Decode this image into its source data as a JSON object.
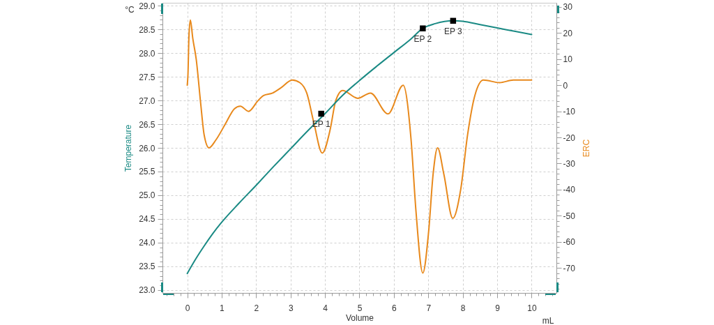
{
  "chart_data": {
    "type": "line",
    "xlabel": "Volume",
    "ylabel": "Temperature",
    "y2label": "ERC",
    "annotations": [
      "°C",
      "mL"
    ],
    "xlim": [
      -0.72,
      10.72
    ],
    "xticks": [
      {
        "value": -0.6,
        "label": null
      },
      {
        "value": -0.4,
        "label": null
      },
      {
        "value": -0.2,
        "label": null
      },
      0,
      {
        "value": 0.2,
        "label": null
      },
      {
        "value": 0.4,
        "label": null
      },
      {
        "value": 0.6,
        "label": null
      },
      {
        "value": 0.8,
        "label": null
      },
      1,
      {
        "value": 1.2,
        "label": null
      },
      {
        "value": 1.4,
        "label": null
      },
      {
        "value": 1.6,
        "label": null
      },
      {
        "value": 1.8,
        "label": null
      },
      2,
      {
        "value": 2.2,
        "label": null
      },
      {
        "value": 2.4,
        "label": null
      },
      {
        "value": 2.6,
        "label": null
      },
      {
        "value": 2.8,
        "label": null
      },
      3,
      {
        "value": 3.2,
        "label": null
      },
      {
        "value": 3.4,
        "label": null
      },
      {
        "value": 3.6,
        "label": null
      },
      {
        "value": 3.8,
        "label": null
      },
      4,
      {
        "value": 4.2,
        "label": null
      },
      {
        "value": 4.4,
        "label": null
      },
      {
        "value": 4.6,
        "label": null
      },
      {
        "value": 4.8,
        "label": null
      },
      5,
      {
        "value": 5.2,
        "label": null
      },
      {
        "value": 5.4,
        "label": null
      },
      {
        "value": 5.6,
        "label": null
      },
      {
        "value": 5.8,
        "label": null
      },
      6,
      {
        "value": 6.2,
        "label": null
      },
      {
        "value": 6.4,
        "label": null
      },
      {
        "value": 6.6,
        "label": null
      },
      {
        "value": 6.8,
        "label": null
      },
      7,
      {
        "value": 7.2,
        "label": null
      },
      {
        "value": 7.4,
        "label": null
      },
      {
        "value": 7.6,
        "label": null
      },
      {
        "value": 7.8,
        "label": null
      },
      8,
      {
        "value": 8.2,
        "label": null
      },
      {
        "value": 8.4,
        "label": null
      },
      {
        "value": 8.6,
        "label": null
      },
      {
        "value": 8.8,
        "label": null
      },
      9,
      {
        "value": 9.2,
        "label": null
      },
      {
        "value": 9.4,
        "label": null
      },
      {
        "value": 9.6,
        "label": null
      },
      {
        "value": 9.8,
        "label": null
      },
      10,
      {
        "value": 10.2,
        "label": null
      },
      {
        "value": 10.4,
        "label": null
      },
      {
        "value": 10.6,
        "label": null
      }
    ],
    "ylim": [
      22.94,
      29.06
    ],
    "yticks": [
      {
        "value": 23,
        "label": "23.0"
      },
      {
        "value": 23.1,
        "label": null
      },
      {
        "value": 23.2,
        "label": null
      },
      {
        "value": 23.3,
        "label": null
      },
      {
        "value": 23.4,
        "label": null
      },
      23.5,
      {
        "value": 23.6,
        "label": null
      },
      {
        "value": 23.7,
        "label": null
      },
      {
        "value": 23.8,
        "label": null
      },
      {
        "value": 23.9,
        "label": null
      },
      {
        "value": 24,
        "label": "24.0"
      },
      {
        "value": 24.1,
        "label": null
      },
      {
        "value": 24.2,
        "label": null
      },
      {
        "value": 24.3,
        "label": null
      },
      {
        "value": 24.4,
        "label": null
      },
      24.5,
      {
        "value": 24.6,
        "label": null
      },
      {
        "value": 24.7,
        "label": null
      },
      {
        "value": 24.8,
        "label": null
      },
      {
        "value": 24.9,
        "label": null
      },
      {
        "value": 25,
        "label": "25.0"
      },
      {
        "value": 25.1,
        "label": null
      },
      {
        "value": 25.2,
        "label": null
      },
      {
        "value": 25.3,
        "label": null
      },
      {
        "value": 25.4,
        "label": null
      },
      25.5,
      {
        "value": 25.6,
        "label": null
      },
      {
        "value": 25.7,
        "label": null
      },
      {
        "value": 25.8,
        "label": null
      },
      {
        "value": 25.9,
        "label": null
      },
      {
        "value": 26,
        "label": "26.0"
      },
      {
        "value": 26.1,
        "label": null
      },
      {
        "value": 26.2,
        "label": null
      },
      {
        "value": 26.3,
        "label": null
      },
      {
        "value": 26.4,
        "label": null
      },
      26.5,
      {
        "value": 26.6,
        "label": null
      },
      {
        "value": 26.7,
        "label": null
      },
      {
        "value": 26.8,
        "label": null
      },
      {
        "value": 26.9,
        "label": null
      },
      {
        "value": 27,
        "label": "27.0"
      },
      {
        "value": 27.1,
        "label": null
      },
      {
        "value": 27.2,
        "label": null
      },
      {
        "value": 27.3,
        "label": null
      },
      {
        "value": 27.4,
        "label": null
      },
      27.5,
      {
        "value": 27.6,
        "label": null
      },
      {
        "value": 27.7,
        "label": null
      },
      {
        "value": 27.8,
        "label": null
      },
      {
        "value": 27.9,
        "label": null
      },
      {
        "value": 28,
        "label": "28.0"
      },
      {
        "value": 28.1,
        "label": null
      },
      {
        "value": 28.2,
        "label": null
      },
      {
        "value": 28.3,
        "label": null
      },
      {
        "value": 28.4,
        "label": null
      },
      28.5,
      {
        "value": 28.6,
        "label": null
      },
      {
        "value": 28.7,
        "label": null
      },
      {
        "value": 28.8,
        "label": null
      },
      {
        "value": 28.9,
        "label": null
      },
      {
        "value": 29,
        "label": "29.0"
      }
    ],
    "y2lim": [
      -79.6,
      31.6
    ],
    "y2ticks": [
      {
        "value": -78,
        "label": null
      },
      {
        "value": -76,
        "label": null
      },
      {
        "value": -74,
        "label": null
      },
      {
        "value": -72,
        "label": null
      },
      -70,
      {
        "value": -68,
        "label": null
      },
      {
        "value": -66,
        "label": null
      },
      {
        "value": -64,
        "label": null
      },
      {
        "value": -62,
        "label": null
      },
      -60,
      {
        "value": -58,
        "label": null
      },
      {
        "value": -56,
        "label": null
      },
      {
        "value": -54,
        "label": null
      },
      {
        "value": -52,
        "label": null
      },
      -50,
      {
        "value": -48,
        "label": null
      },
      {
        "value": -46,
        "label": null
      },
      {
        "value": -44,
        "label": null
      },
      {
        "value": -42,
        "label": null
      },
      -40,
      {
        "value": -38,
        "label": null
      },
      {
        "value": -36,
        "label": null
      },
      {
        "value": -34,
        "label": null
      },
      {
        "value": -32,
        "label": null
      },
      -30,
      {
        "value": -28,
        "label": null
      },
      {
        "value": -26,
        "label": null
      },
      {
        "value": -24,
        "label": null
      },
      {
        "value": -22,
        "label": null
      },
      -20,
      {
        "value": -18,
        "label": null
      },
      {
        "value": -16,
        "label": null
      },
      {
        "value": -14,
        "label": null
      },
      {
        "value": -12,
        "label": null
      },
      -10,
      {
        "value": -8,
        "label": null
      },
      {
        "value": -6,
        "label": null
      },
      {
        "value": -4,
        "label": null
      },
      {
        "value": -2,
        "label": null
      },
      0,
      {
        "value": 2,
        "label": null
      },
      {
        "value": 4,
        "label": null
      },
      {
        "value": 6,
        "label": null
      },
      {
        "value": 8,
        "label": null
      },
      10,
      {
        "value": 12,
        "label": null
      },
      {
        "value": 14,
        "label": null
      },
      {
        "value": 16,
        "label": null
      },
      {
        "value": 18,
        "label": null
      },
      20,
      {
        "value": 22,
        "label": null
      },
      {
        "value": 24,
        "label": null
      },
      {
        "value": 26,
        "label": null
      },
      {
        "value": 28,
        "label": null
      },
      30
    ],
    "grid": true,
    "series": [
      {
        "axis": "y2",
        "color": "#e8891c",
        "x": [
          0,
          0.02,
          0.05,
          0.09,
          0.16,
          0.26,
          0.39,
          0.49,
          0.63,
          0.83,
          1.1,
          1.37,
          1.54,
          1.78,
          2.05,
          2.21,
          2.48,
          2.72,
          3.05,
          3.27,
          3.47,
          3.67,
          3.92,
          4.15,
          4.31,
          4.51,
          4.95,
          5.32,
          5.83,
          6.27,
          6.5,
          6.64,
          6.84,
          7.01,
          7.14,
          7.27,
          7.45,
          7.71,
          7.94,
          8.14,
          8.35,
          8.6,
          9.07,
          9.47,
          10
        ],
        "values": [
          0,
          4,
          19,
          25,
          18,
          10,
          -7,
          -19,
          -24,
          -21,
          -15,
          -9,
          -8,
          -10,
          -6,
          -4,
          -3,
          -1,
          2,
          1,
          -3,
          -14,
          -26,
          -17,
          -6,
          -2,
          -5,
          -3,
          -11,
          0,
          -21,
          -48,
          -72,
          -56,
          -34,
          -24,
          -34,
          -51,
          -40,
          -19,
          -4,
          2,
          1,
          2,
          2
        ]
      },
      {
        "axis": "y",
        "color": "#1a8a84",
        "x": [
          0,
          0.25,
          0.5,
          0.75,
          1,
          1.5,
          2,
          2.5,
          3,
          3.5,
          4,
          4.5,
          5,
          5.5,
          6,
          6.5,
          6.84,
          7.2,
          7.72,
          8,
          8.5,
          9,
          9.5,
          10
        ],
        "values": [
          23.35,
          23.66,
          23.94,
          24.2,
          24.43,
          24.83,
          25.21,
          25.6,
          25.98,
          26.36,
          26.72,
          27.1,
          27.42,
          27.72,
          28.01,
          28.3,
          28.52,
          28.62,
          28.68,
          28.67,
          28.6,
          28.53,
          28.46,
          28.39
        ]
      },
      {
        "axis": "y",
        "type": "scatter",
        "marker": "square",
        "color": "#000000",
        "x": [
          3.89,
          6.84,
          7.72
        ],
        "values": [
          26.72,
          28.52,
          28.68
        ],
        "value_labels": [
          "EP 1",
          "EP 2",
          "EP 3"
        ]
      }
    ]
  }
}
